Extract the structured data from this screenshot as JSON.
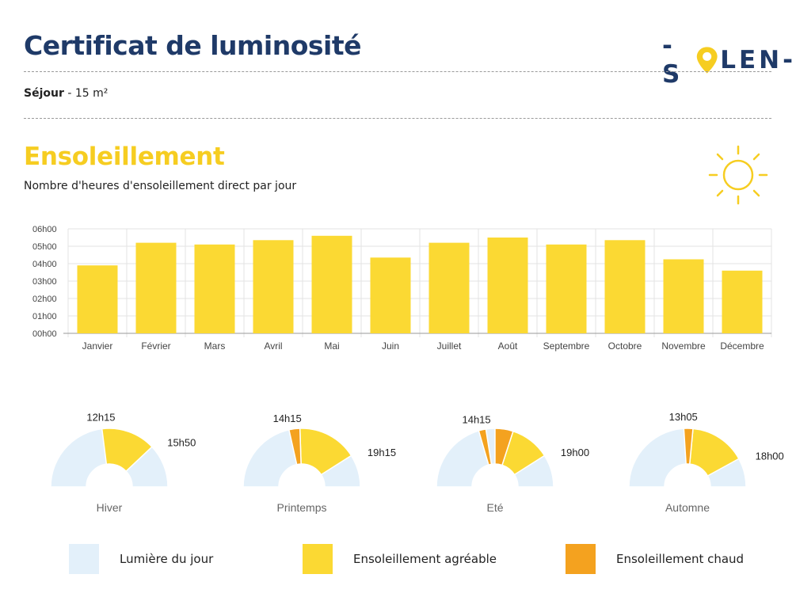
{
  "header": {
    "title": "Certificat de luminosité",
    "logo_text_left": "-S",
    "logo_text_right": "LEN-"
  },
  "room": {
    "name": "Séjour",
    "detail": " - 15 m²"
  },
  "section": {
    "title": "Ensoleillement",
    "subtitle": "Nombre d'heures d'ensoleillement direct par jour"
  },
  "colors": {
    "navy": "#1f3a68",
    "yellow": "#f6cd21",
    "bar": "#fbd933",
    "daylight": "#e3f0fa",
    "hot": "#f4a21f",
    "grid": "#e3e3e3"
  },
  "chart_data": {
    "type": "bar",
    "categories": [
      "Janvier",
      "Février",
      "Mars",
      "Avril",
      "Mai",
      "Juin",
      "Juillet",
      "Août",
      "Septembre",
      "Octobre",
      "Novembre",
      "Décembre"
    ],
    "values": [
      3.9,
      5.2,
      5.1,
      5.35,
      5.6,
      4.35,
      5.2,
      5.5,
      5.1,
      5.35,
      4.25,
      3.6
    ],
    "y_ticks": [
      "00h00",
      "01h00",
      "02h00",
      "03h00",
      "04h00",
      "05h00",
      "06h00"
    ],
    "ylim": [
      0,
      6
    ],
    "grid": true
  },
  "seasons": [
    {
      "name": "Hiver",
      "labels": [
        "12h15",
        "15h50"
      ],
      "warm": [
        [
          0.46,
          0.76
        ]
      ],
      "hot": []
    },
    {
      "name": "Printemps",
      "labels": [
        "14h15",
        "19h15"
      ],
      "warm": [
        [
          0.49,
          0.82
        ]
      ],
      "hot": [
        [
          0.43,
          0.49
        ]
      ]
    },
    {
      "name": "Eté",
      "labels": [
        "14h15",
        "19h00"
      ],
      "warm": [
        [
          0.6,
          0.82
        ]
      ],
      "hot": [
        [
          0.41,
          0.45
        ],
        [
          0.5,
          0.6
        ]
      ]
    },
    {
      "name": "Automne",
      "labels": [
        "13h05",
        "18h00"
      ],
      "warm": [
        [
          0.53,
          0.84
        ]
      ],
      "hot": [
        [
          0.48,
          0.53
        ]
      ]
    }
  ],
  "legend": [
    {
      "label": "Lumière du jour",
      "color": "#e3f0fa"
    },
    {
      "label": "Ensoleillement agréable",
      "color": "#fbd933"
    },
    {
      "label": "Ensoleillement chaud",
      "color": "#f4a21f"
    }
  ]
}
